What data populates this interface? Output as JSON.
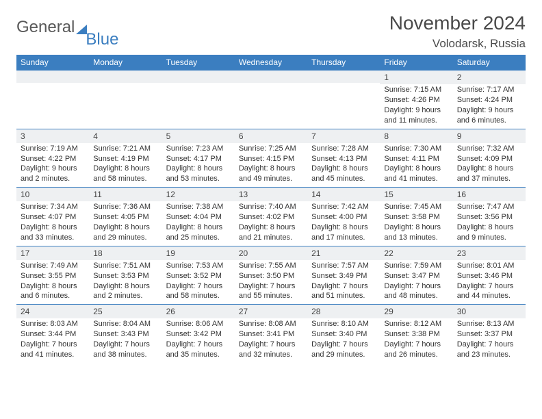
{
  "brand": {
    "main": "General",
    "sub": "Blue"
  },
  "title": "November 2024",
  "location": "Volodarsk, Russia",
  "colors": {
    "header_bg": "#3b7ec0",
    "row_divider": "#3b7ec0",
    "daynum_bg": "#eef0f2",
    "text": "#333333",
    "title_text": "#4a4a4a"
  },
  "typography": {
    "title_fontsize": 28,
    "location_fontsize": 17,
    "dow_fontsize": 12,
    "daynum_fontsize": 12,
    "body_fontsize": 11
  },
  "layout": {
    "columns": 7,
    "rows": 5
  },
  "dow": [
    "Sunday",
    "Monday",
    "Tuesday",
    "Wednesday",
    "Thursday",
    "Friday",
    "Saturday"
  ],
  "weeks": [
    [
      {
        "n": "",
        "sr": "",
        "ss": "",
        "dl": ""
      },
      {
        "n": "",
        "sr": "",
        "ss": "",
        "dl": ""
      },
      {
        "n": "",
        "sr": "",
        "ss": "",
        "dl": ""
      },
      {
        "n": "",
        "sr": "",
        "ss": "",
        "dl": ""
      },
      {
        "n": "",
        "sr": "",
        "ss": "",
        "dl": ""
      },
      {
        "n": "1",
        "sr": "Sunrise: 7:15 AM",
        "ss": "Sunset: 4:26 PM",
        "dl": "Daylight: 9 hours and 11 minutes."
      },
      {
        "n": "2",
        "sr": "Sunrise: 7:17 AM",
        "ss": "Sunset: 4:24 PM",
        "dl": "Daylight: 9 hours and 6 minutes."
      }
    ],
    [
      {
        "n": "3",
        "sr": "Sunrise: 7:19 AM",
        "ss": "Sunset: 4:22 PM",
        "dl": "Daylight: 9 hours and 2 minutes."
      },
      {
        "n": "4",
        "sr": "Sunrise: 7:21 AM",
        "ss": "Sunset: 4:19 PM",
        "dl": "Daylight: 8 hours and 58 minutes."
      },
      {
        "n": "5",
        "sr": "Sunrise: 7:23 AM",
        "ss": "Sunset: 4:17 PM",
        "dl": "Daylight: 8 hours and 53 minutes."
      },
      {
        "n": "6",
        "sr": "Sunrise: 7:25 AM",
        "ss": "Sunset: 4:15 PM",
        "dl": "Daylight: 8 hours and 49 minutes."
      },
      {
        "n": "7",
        "sr": "Sunrise: 7:28 AM",
        "ss": "Sunset: 4:13 PM",
        "dl": "Daylight: 8 hours and 45 minutes."
      },
      {
        "n": "8",
        "sr": "Sunrise: 7:30 AM",
        "ss": "Sunset: 4:11 PM",
        "dl": "Daylight: 8 hours and 41 minutes."
      },
      {
        "n": "9",
        "sr": "Sunrise: 7:32 AM",
        "ss": "Sunset: 4:09 PM",
        "dl": "Daylight: 8 hours and 37 minutes."
      }
    ],
    [
      {
        "n": "10",
        "sr": "Sunrise: 7:34 AM",
        "ss": "Sunset: 4:07 PM",
        "dl": "Daylight: 8 hours and 33 minutes."
      },
      {
        "n": "11",
        "sr": "Sunrise: 7:36 AM",
        "ss": "Sunset: 4:05 PM",
        "dl": "Daylight: 8 hours and 29 minutes."
      },
      {
        "n": "12",
        "sr": "Sunrise: 7:38 AM",
        "ss": "Sunset: 4:04 PM",
        "dl": "Daylight: 8 hours and 25 minutes."
      },
      {
        "n": "13",
        "sr": "Sunrise: 7:40 AM",
        "ss": "Sunset: 4:02 PM",
        "dl": "Daylight: 8 hours and 21 minutes."
      },
      {
        "n": "14",
        "sr": "Sunrise: 7:42 AM",
        "ss": "Sunset: 4:00 PM",
        "dl": "Daylight: 8 hours and 17 minutes."
      },
      {
        "n": "15",
        "sr": "Sunrise: 7:45 AM",
        "ss": "Sunset: 3:58 PM",
        "dl": "Daylight: 8 hours and 13 minutes."
      },
      {
        "n": "16",
        "sr": "Sunrise: 7:47 AM",
        "ss": "Sunset: 3:56 PM",
        "dl": "Daylight: 8 hours and 9 minutes."
      }
    ],
    [
      {
        "n": "17",
        "sr": "Sunrise: 7:49 AM",
        "ss": "Sunset: 3:55 PM",
        "dl": "Daylight: 8 hours and 6 minutes."
      },
      {
        "n": "18",
        "sr": "Sunrise: 7:51 AM",
        "ss": "Sunset: 3:53 PM",
        "dl": "Daylight: 8 hours and 2 minutes."
      },
      {
        "n": "19",
        "sr": "Sunrise: 7:53 AM",
        "ss": "Sunset: 3:52 PM",
        "dl": "Daylight: 7 hours and 58 minutes."
      },
      {
        "n": "20",
        "sr": "Sunrise: 7:55 AM",
        "ss": "Sunset: 3:50 PM",
        "dl": "Daylight: 7 hours and 55 minutes."
      },
      {
        "n": "21",
        "sr": "Sunrise: 7:57 AM",
        "ss": "Sunset: 3:49 PM",
        "dl": "Daylight: 7 hours and 51 minutes."
      },
      {
        "n": "22",
        "sr": "Sunrise: 7:59 AM",
        "ss": "Sunset: 3:47 PM",
        "dl": "Daylight: 7 hours and 48 minutes."
      },
      {
        "n": "23",
        "sr": "Sunrise: 8:01 AM",
        "ss": "Sunset: 3:46 PM",
        "dl": "Daylight: 7 hours and 44 minutes."
      }
    ],
    [
      {
        "n": "24",
        "sr": "Sunrise: 8:03 AM",
        "ss": "Sunset: 3:44 PM",
        "dl": "Daylight: 7 hours and 41 minutes."
      },
      {
        "n": "25",
        "sr": "Sunrise: 8:04 AM",
        "ss": "Sunset: 3:43 PM",
        "dl": "Daylight: 7 hours and 38 minutes."
      },
      {
        "n": "26",
        "sr": "Sunrise: 8:06 AM",
        "ss": "Sunset: 3:42 PM",
        "dl": "Daylight: 7 hours and 35 minutes."
      },
      {
        "n": "27",
        "sr": "Sunrise: 8:08 AM",
        "ss": "Sunset: 3:41 PM",
        "dl": "Daylight: 7 hours and 32 minutes."
      },
      {
        "n": "28",
        "sr": "Sunrise: 8:10 AM",
        "ss": "Sunset: 3:40 PM",
        "dl": "Daylight: 7 hours and 29 minutes."
      },
      {
        "n": "29",
        "sr": "Sunrise: 8:12 AM",
        "ss": "Sunset: 3:38 PM",
        "dl": "Daylight: 7 hours and 26 minutes."
      },
      {
        "n": "30",
        "sr": "Sunrise: 8:13 AM",
        "ss": "Sunset: 3:37 PM",
        "dl": "Daylight: 7 hours and 23 minutes."
      }
    ]
  ]
}
